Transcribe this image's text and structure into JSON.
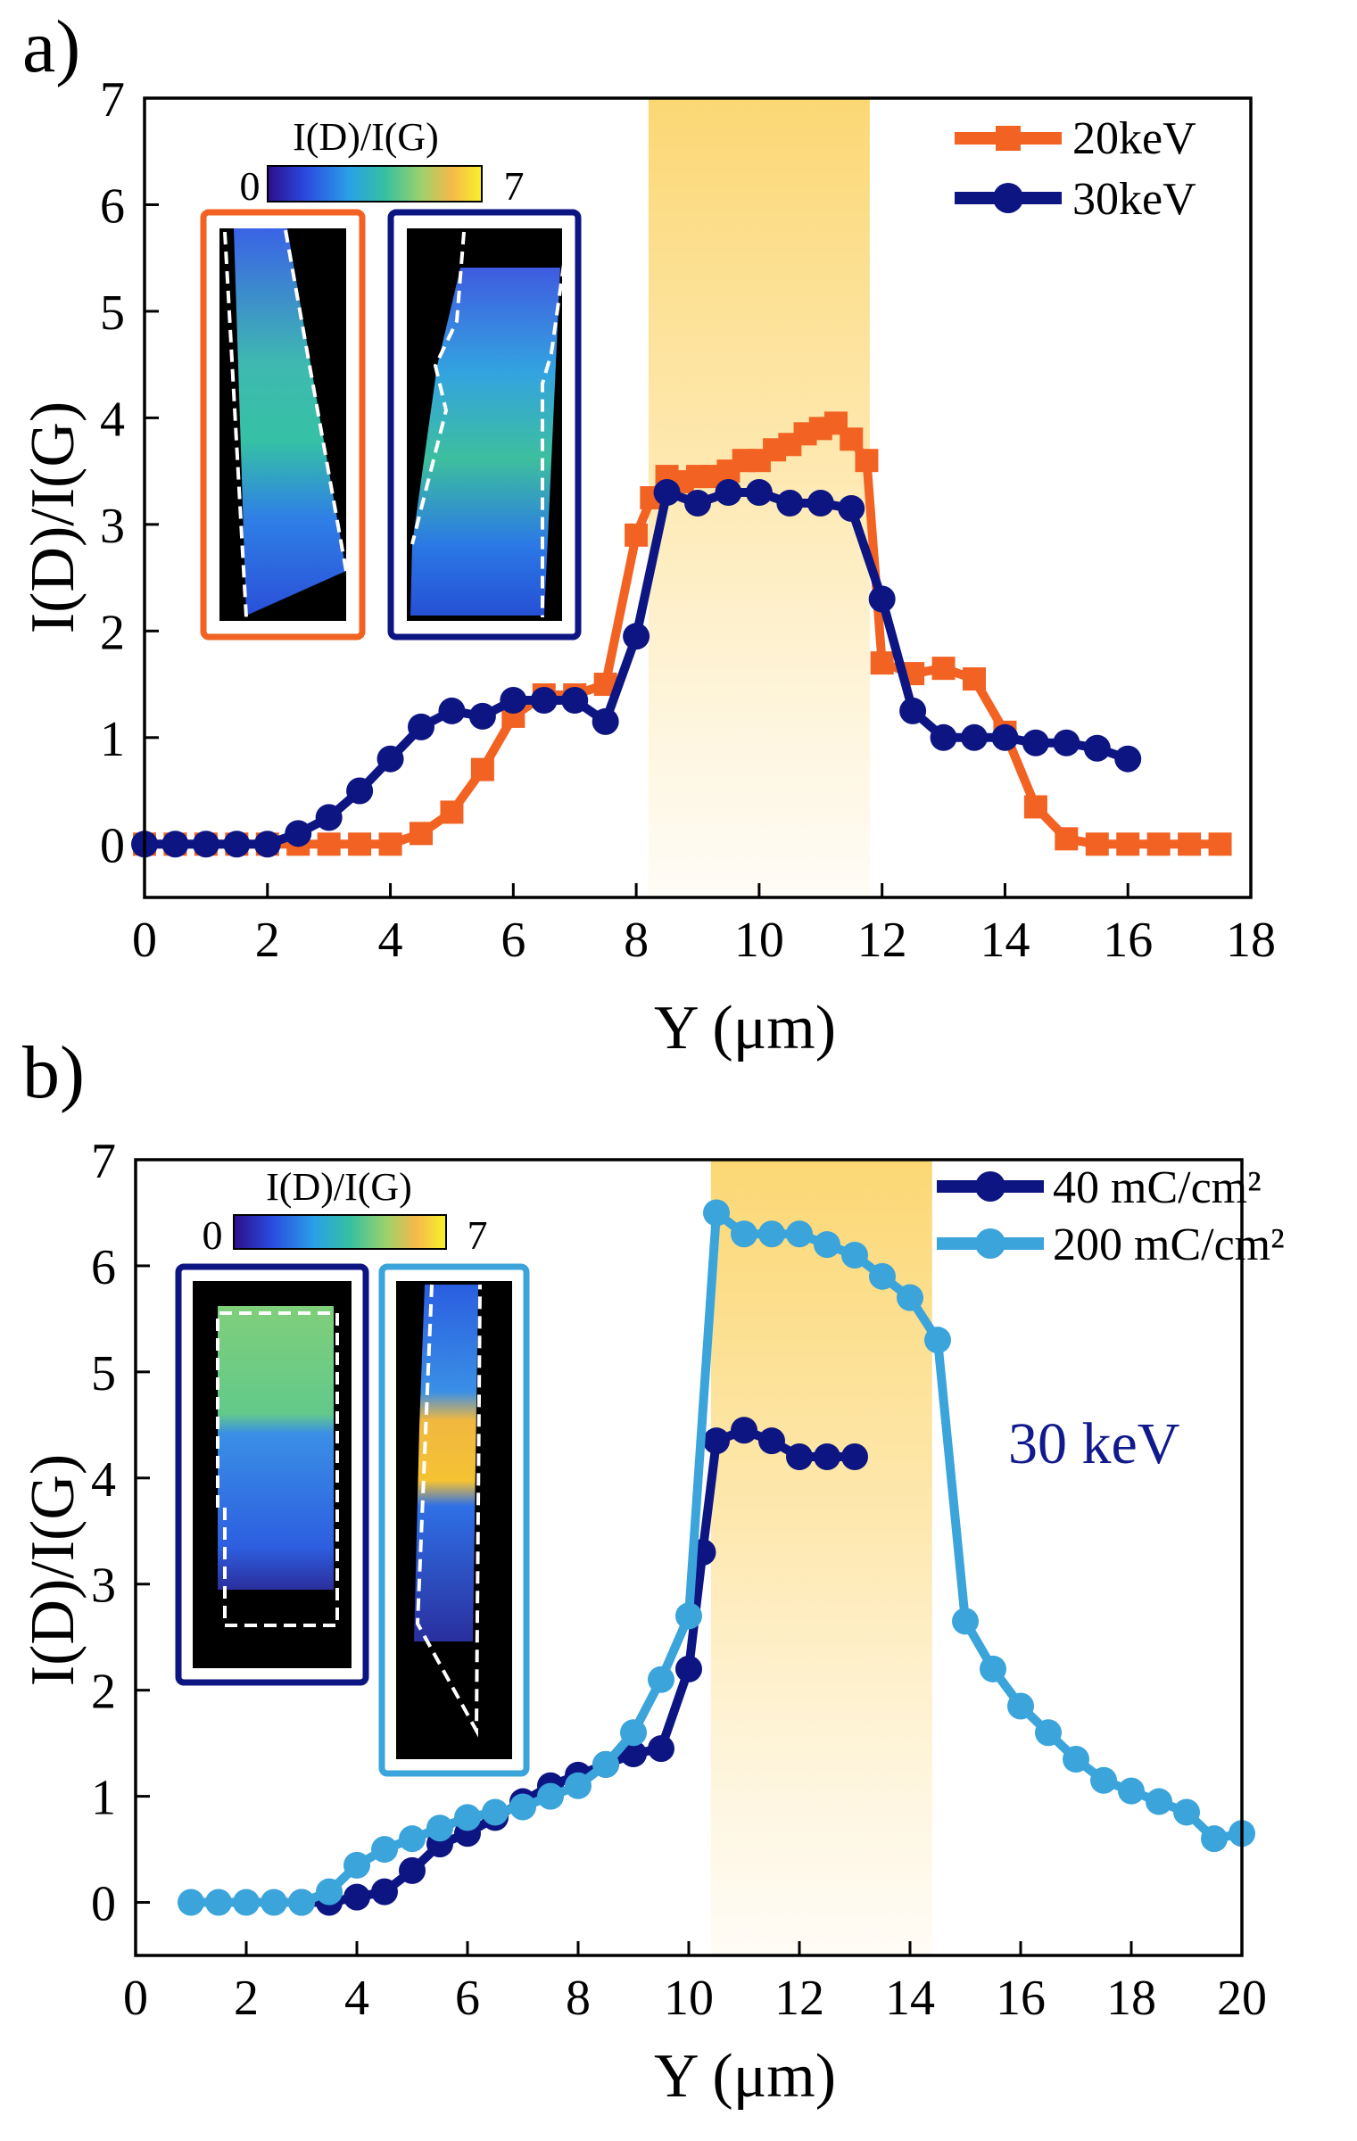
{
  "chart_data": [
    {
      "panel": "a)",
      "type": "line",
      "xlabel": "Y (μm)",
      "ylabel": "I(D)/I(G)",
      "xlim": [
        0,
        18
      ],
      "ylim": [
        -0.5,
        7
      ],
      "xticks": [
        "0",
        "2",
        "4",
        "6",
        "8",
        "10",
        "12",
        "14",
        "16",
        "18"
      ],
      "yticks": [
        "0",
        "1",
        "2",
        "3",
        "4",
        "5",
        "6",
        "7"
      ],
      "highlight_x": [
        8.2,
        11.8
      ],
      "legend_position": "top-right",
      "series": [
        {
          "name": "20keV",
          "color": "#f26222",
          "x": [
            0,
            0.5,
            1,
            1.5,
            2,
            2.5,
            3,
            3.5,
            4,
            4.5,
            5,
            5.5,
            6,
            6.5,
            7,
            7.5,
            8,
            8.25,
            8.5,
            8.75,
            9,
            9.25,
            9.5,
            9.75,
            10,
            10.25,
            10.5,
            10.75,
            11,
            11.25,
            11.5,
            11.75,
            12,
            12.5,
            13,
            13.5,
            14,
            14.5,
            15,
            15.5,
            16,
            16.5,
            17,
            17.5
          ],
          "values": [
            0,
            0,
            0,
            0,
            0,
            0,
            0,
            0,
            0,
            0.1,
            0.3,
            0.7,
            1.2,
            1.4,
            1.4,
            1.5,
            2.9,
            3.25,
            3.45,
            3.4,
            3.45,
            3.45,
            3.5,
            3.6,
            3.6,
            3.7,
            3.75,
            3.85,
            3.9,
            3.95,
            3.8,
            3.6,
            1.7,
            1.6,
            1.65,
            1.55,
            1.05,
            0.35,
            0.05,
            0,
            0,
            0,
            0,
            0
          ]
        },
        {
          "name": "30keV",
          "color": "#0d1582",
          "x": [
            0,
            0.5,
            1,
            1.5,
            2,
            2.5,
            3,
            3.5,
            4,
            4.5,
            5,
            5.5,
            6,
            6.5,
            7,
            7.5,
            8,
            8.5,
            9,
            9.5,
            10,
            10.5,
            11,
            11.5,
            12,
            12.5,
            13,
            13.5,
            14,
            14.5,
            15,
            15.5,
            16
          ],
          "values": [
            0,
            0,
            0,
            0,
            0,
            0.1,
            0.25,
            0.5,
            0.8,
            1.1,
            1.25,
            1.2,
            1.35,
            1.35,
            1.35,
            1.15,
            1.95,
            3.3,
            3.2,
            3.3,
            3.3,
            3.2,
            3.2,
            3.15,
            2.3,
            1.25,
            1.0,
            1.0,
            1.0,
            0.95,
            0.95,
            0.9,
            0.8
          ]
        }
      ],
      "inset": {
        "colorbar_title": "I(D)/I(G)",
        "colorbar_min": "0",
        "colorbar_max": "7",
        "frames": [
          "#f26222",
          "#0d1582"
        ]
      }
    },
    {
      "panel": "b)",
      "type": "line",
      "xlabel": "Y (μm)",
      "ylabel": "I(D)/I(G)",
      "xlim": [
        0,
        20
      ],
      "ylim": [
        -0.5,
        7
      ],
      "xticks": [
        "0",
        "2",
        "4",
        "6",
        "8",
        "10",
        "12",
        "14",
        "16",
        "18",
        "20"
      ],
      "yticks": [
        "0",
        "1",
        "2",
        "3",
        "4",
        "5",
        "6",
        "7"
      ],
      "highlight_x": [
        10.4,
        14.4
      ],
      "legend_position": "top-right",
      "annotation": "30 keV",
      "series": [
        {
          "name": "40 mC/cm²",
          "color": "#0d1582",
          "x": [
            3,
            3.5,
            4,
            4.5,
            5,
            5.5,
            6,
            6.5,
            7,
            7.5,
            8,
            8.5,
            9,
            9.5,
            10,
            10.25,
            10.5,
            11,
            11.5,
            12,
            12.5,
            13
          ],
          "values": [
            0,
            0,
            0.05,
            0.1,
            0.3,
            0.55,
            0.65,
            0.8,
            0.95,
            1.1,
            1.2,
            1.3,
            1.4,
            1.45,
            2.2,
            3.3,
            4.35,
            4.45,
            4.35,
            4.2,
            4.2,
            4.2
          ]
        },
        {
          "name": "200 mC/cm²",
          "color": "#3ba4db",
          "x": [
            1,
            1.5,
            2,
            2.5,
            3,
            3.5,
            4,
            4.5,
            5,
            5.5,
            6,
            6.5,
            7,
            7.5,
            8,
            8.5,
            9,
            9.5,
            10,
            10.5,
            11,
            11.5,
            12,
            12.5,
            13,
            13.5,
            14,
            14.5,
            15,
            15.5,
            16,
            16.5,
            17,
            17.5,
            18,
            18.5,
            19,
            19.5,
            20
          ],
          "values": [
            0,
            0,
            0,
            0,
            0,
            0.1,
            0.35,
            0.5,
            0.6,
            0.7,
            0.8,
            0.85,
            0.9,
            1.0,
            1.1,
            1.3,
            1.6,
            2.1,
            2.7,
            6.5,
            6.3,
            6.3,
            6.3,
            6.2,
            6.1,
            5.9,
            5.7,
            5.3,
            2.65,
            2.2,
            1.85,
            1.6,
            1.35,
            1.15,
            1.05,
            0.95,
            0.85,
            0.6,
            0.65
          ]
        }
      ],
      "inset": {
        "colorbar_title": "I(D)/I(G)",
        "colorbar_min": "0",
        "colorbar_max": "7",
        "frames": [
          "#0d1582",
          "#3ba4db"
        ]
      }
    }
  ]
}
